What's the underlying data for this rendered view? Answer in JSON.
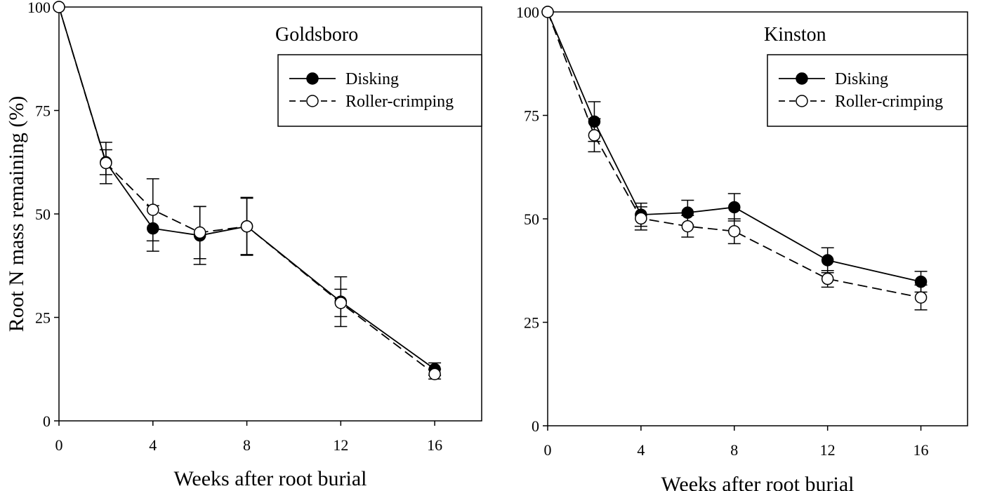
{
  "chart_data": [
    {
      "type": "line",
      "title": "Goldsboro",
      "xlabel": "Weeks after root burial",
      "ylabel": "Root N mass remaining (%)",
      "xlim": [
        0,
        18
      ],
      "ylim": [
        0,
        100
      ],
      "xticks": [
        0,
        4,
        8,
        12,
        16
      ],
      "yticks": [
        0,
        25,
        50,
        75,
        100
      ],
      "legend_placement": "top-right",
      "grid": false,
      "x": [
        0,
        2,
        4,
        6,
        8,
        12,
        16
      ],
      "series": [
        {
          "name": "Disking",
          "marker": "filled-circle",
          "line": "solid",
          "values": [
            100,
            62.5,
            46.5,
            44.8,
            47,
            28.8,
            12.5
          ],
          "error": [
            0,
            3.0,
            5.5,
            7.0,
            7.0,
            6.0,
            1.5
          ]
        },
        {
          "name": "Roller-crimping",
          "marker": "open-circle",
          "line": "dashed",
          "values": [
            100,
            62.3,
            51,
            45.5,
            47,
            28.5,
            11.3
          ],
          "error": [
            0,
            5.0,
            7.5,
            6.3,
            6.8,
            3.3,
            1.2
          ]
        }
      ]
    },
    {
      "type": "line",
      "title": "Kinston",
      "xlabel": "Weeks after root burial",
      "ylabel": "",
      "xlim": [
        0,
        18
      ],
      "ylim": [
        0,
        100
      ],
      "xticks": [
        0,
        4,
        8,
        12,
        16
      ],
      "yticks": [
        0,
        25,
        50,
        75,
        100
      ],
      "legend_placement": "top-right",
      "grid": false,
      "x": [
        0,
        2,
        4,
        6,
        8,
        12,
        16
      ],
      "series": [
        {
          "name": "Disking",
          "marker": "filled-circle",
          "line": "solid",
          "values": [
            100,
            73.5,
            51,
            51.5,
            52.8,
            40,
            34.8
          ],
          "error": [
            0,
            4.8,
            2.8,
            3.0,
            3.3,
            3.0,
            2.5
          ]
        },
        {
          "name": "Roller-crimping",
          "marker": "open-circle",
          "line": "dashed",
          "values": [
            100,
            70.2,
            50.1,
            48.2,
            47,
            35.5,
            31
          ],
          "error": [
            0,
            4.0,
            2.8,
            2.6,
            3.0,
            2.0,
            3.0
          ]
        }
      ]
    }
  ]
}
